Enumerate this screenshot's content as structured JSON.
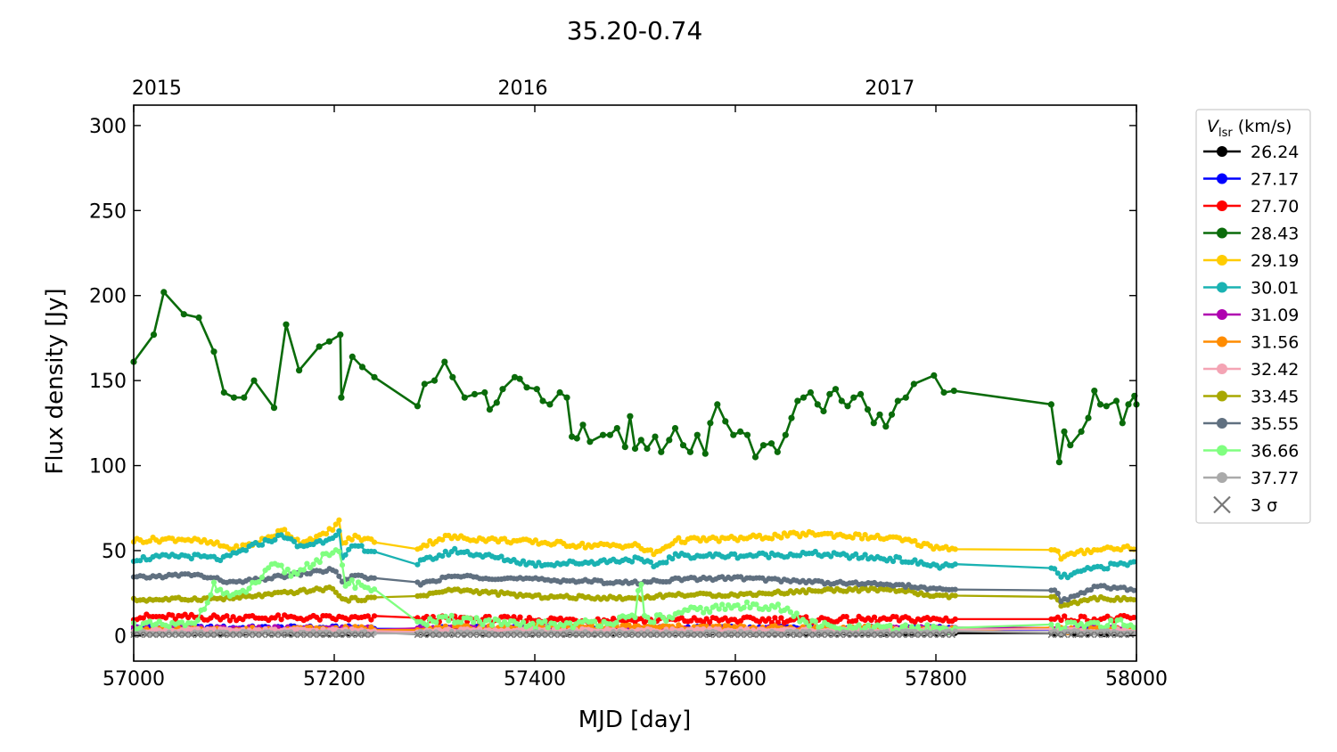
{
  "chart_data": {
    "type": "line",
    "title": "35.20-0.74",
    "xlabel": "MJD [day]",
    "ylabel": "Flux density [Jy]",
    "xlim": [
      57000,
      58000
    ],
    "ylim": [
      -15,
      312
    ],
    "xticks": [
      57000,
      57200,
      57400,
      57600,
      57800,
      58000
    ],
    "yticks": [
      0,
      50,
      100,
      150,
      200,
      250,
      300
    ],
    "top_axis": {
      "ticks": [
        {
          "label": "2015",
          "mjd": 57023
        },
        {
          "label": "2016",
          "mjd": 57388
        },
        {
          "label": "2017",
          "mjd": 57754
        }
      ]
    },
    "legend": {
      "title_main": "V",
      "title_sub": "lsr",
      "title_unit": " (km/s)",
      "position": "outside-right",
      "sigma_label": "3 σ"
    },
    "series": [
      {
        "name": "26.24",
        "color": "#000000",
        "shape": "flat",
        "level": 1.5,
        "noise": 0.6,
        "end": 1.2
      },
      {
        "name": "27.17",
        "color": "#0000ff",
        "shape": "flat",
        "level": 4.5,
        "noise": 1.2,
        "end": 4.0
      },
      {
        "name": "27.70",
        "color": "#ff0000",
        "shape": "flat",
        "level": 9,
        "noise": 1.8,
        "start": 11,
        "end": 10
      },
      {
        "name": "28.43",
        "color": "#0a6b0a",
        "shape": "main"
      },
      {
        "name": "29.19",
        "color": "#ffcc00",
        "shape": "trend",
        "base": 55,
        "noise": 1.5,
        "knots": [
          [
            57000,
            56
          ],
          [
            57050,
            57
          ],
          [
            57080,
            54
          ],
          [
            57100,
            51
          ],
          [
            57120,
            54
          ],
          [
            57150,
            62
          ],
          [
            57165,
            55
          ],
          [
            57190,
            59
          ],
          [
            57205,
            67
          ],
          [
            57207,
            54
          ],
          [
            57220,
            58
          ],
          [
            57280,
            51
          ],
          [
            57310,
            58
          ],
          [
            57400,
            55
          ],
          [
            57450,
            53
          ],
          [
            57500,
            53
          ],
          [
            57520,
            48
          ],
          [
            57540,
            56
          ],
          [
            57600,
            57
          ],
          [
            57680,
            60
          ],
          [
            57760,
            57
          ],
          [
            57800,
            52
          ],
          [
            57920,
            50
          ],
          [
            57925,
            46
          ],
          [
            57960,
            51
          ],
          [
            58000,
            52
          ]
        ]
      },
      {
        "name": "30.01",
        "color": "#1ab2b2",
        "shape": "trend",
        "base": 45,
        "noise": 1.5,
        "knots": [
          [
            57000,
            45
          ],
          [
            57050,
            47
          ],
          [
            57090,
            45
          ],
          [
            57120,
            53
          ],
          [
            57150,
            59
          ],
          [
            57165,
            52
          ],
          [
            57190,
            56
          ],
          [
            57205,
            61
          ],
          [
            57207,
            44
          ],
          [
            57220,
            53
          ],
          [
            57280,
            42
          ],
          [
            57320,
            50
          ],
          [
            57400,
            42
          ],
          [
            57450,
            43
          ],
          [
            57500,
            45
          ],
          [
            57520,
            41
          ],
          [
            57540,
            47
          ],
          [
            57600,
            47
          ],
          [
            57680,
            48
          ],
          [
            57760,
            45
          ],
          [
            57800,
            41
          ],
          [
            57920,
            39
          ],
          [
            57925,
            34
          ],
          [
            57960,
            40
          ],
          [
            58000,
            43
          ]
        ]
      },
      {
        "name": "31.09",
        "color": "#b000b0",
        "shape": "flat",
        "level": 4,
        "noise": 1.2,
        "end": 4
      },
      {
        "name": "31.56",
        "color": "#ff8c00",
        "shape": "flat",
        "level": 5,
        "noise": 1.5,
        "start": 3,
        "end": 3
      },
      {
        "name": "32.42",
        "color": "#f4a4b4",
        "shape": "flat",
        "level": 3,
        "noise": 1.0,
        "end": 3
      },
      {
        "name": "33.45",
        "color": "#a8a800",
        "shape": "trend",
        "base": 23,
        "noise": 1.0,
        "knots": [
          [
            57000,
            21
          ],
          [
            57100,
            22
          ],
          [
            57200,
            28
          ],
          [
            57207,
            21
          ],
          [
            57280,
            23
          ],
          [
            57320,
            27
          ],
          [
            57400,
            23
          ],
          [
            57500,
            22
          ],
          [
            57540,
            24
          ],
          [
            57600,
            24
          ],
          [
            57700,
            27
          ],
          [
            57760,
            27
          ],
          [
            57800,
            23
          ],
          [
            57920,
            23
          ],
          [
            57925,
            17
          ],
          [
            57960,
            22
          ],
          [
            58000,
            21
          ]
        ]
      },
      {
        "name": "35.55",
        "color": "#607080",
        "shape": "trend",
        "base": 33,
        "noise": 1.0,
        "knots": [
          [
            57000,
            34
          ],
          [
            57060,
            36
          ],
          [
            57100,
            31
          ],
          [
            57200,
            39
          ],
          [
            57207,
            32
          ],
          [
            57220,
            35
          ],
          [
            57280,
            30
          ],
          [
            57320,
            35
          ],
          [
            57400,
            33
          ],
          [
            57500,
            31
          ],
          [
            57540,
            33
          ],
          [
            57600,
            34
          ],
          [
            57700,
            31
          ],
          [
            57760,
            30
          ],
          [
            57800,
            27
          ],
          [
            57920,
            27
          ],
          [
            57925,
            20
          ],
          [
            57960,
            29
          ],
          [
            58000,
            27
          ]
        ]
      },
      {
        "name": "36.66",
        "color": "#80ff80",
        "shape": "spiky",
        "base": 6,
        "noise": 2.5,
        "knots": [
          [
            57000,
            6
          ],
          [
            57060,
            6
          ],
          [
            57080,
            29
          ],
          [
            57100,
            22
          ],
          [
            57120,
            30
          ],
          [
            57140,
            41
          ],
          [
            57160,
            36
          ],
          [
            57180,
            44
          ],
          [
            57207,
            49
          ],
          [
            57210,
            31
          ],
          [
            57230,
            30
          ],
          [
            57260,
            15
          ],
          [
            57290,
            8
          ],
          [
            57330,
            10
          ],
          [
            57380,
            6
          ],
          [
            57450,
            7
          ],
          [
            57500,
            10
          ],
          [
            57505,
            35
          ],
          [
            57510,
            10
          ],
          [
            57530,
            10
          ],
          [
            57560,
            15
          ],
          [
            57600,
            17
          ],
          [
            57640,
            18
          ],
          [
            57670,
            8
          ],
          [
            57700,
            4
          ],
          [
            57800,
            4
          ],
          [
            57920,
            5
          ],
          [
            57960,
            7
          ],
          [
            58000,
            7
          ]
        ]
      },
      {
        "name": "37.77",
        "color": "#aaaaaa",
        "shape": "flat",
        "level": 1.5,
        "noise": 0.8,
        "end": 2
      }
    ],
    "sigma_level": 0.5,
    "main_series_points": [
      [
        57000,
        161
      ],
      [
        57020,
        177
      ],
      [
        57030,
        202
      ],
      [
        57050,
        189
      ],
      [
        57065,
        187
      ],
      [
        57080,
        167
      ],
      [
        57090,
        143
      ],
      [
        57100,
        140
      ],
      [
        57110,
        140
      ],
      [
        57120,
        150
      ],
      [
        57140,
        134
      ],
      [
        57152,
        183
      ],
      [
        57165,
        156
      ],
      [
        57185,
        170
      ],
      [
        57195,
        173
      ],
      [
        57206,
        177
      ],
      [
        57207,
        140
      ],
      [
        57218,
        164
      ],
      [
        57228,
        158
      ],
      [
        57240,
        152
      ],
      [
        57283,
        135
      ],
      [
        57290,
        148
      ],
      [
        57300,
        150
      ],
      [
        57310,
        161
      ],
      [
        57318,
        152
      ],
      [
        57330,
        140
      ],
      [
        57340,
        142
      ],
      [
        57350,
        143
      ],
      [
        57355,
        133
      ],
      [
        57362,
        137
      ],
      [
        57368,
        145
      ],
      [
        57380,
        152
      ],
      [
        57385,
        151
      ],
      [
        57392,
        146
      ],
      [
        57402,
        145
      ],
      [
        57408,
        138
      ],
      [
        57415,
        136
      ],
      [
        57425,
        143
      ],
      [
        57432,
        140
      ],
      [
        57437,
        117
      ],
      [
        57442,
        116
      ],
      [
        57448,
        124
      ],
      [
        57455,
        114
      ],
      [
        57468,
        118
      ],
      [
        57475,
        118
      ],
      [
        57482,
        122
      ],
      [
        57490,
        111
      ],
      [
        57495,
        129
      ],
      [
        57500,
        110
      ],
      [
        57506,
        115
      ],
      [
        57512,
        110
      ],
      [
        57520,
        117
      ],
      [
        57526,
        108
      ],
      [
        57534,
        115
      ],
      [
        57540,
        122
      ],
      [
        57548,
        112
      ],
      [
        57555,
        108
      ],
      [
        57562,
        118
      ],
      [
        57570,
        107
      ],
      [
        57575,
        125
      ],
      [
        57582,
        136
      ],
      [
        57590,
        126
      ],
      [
        57598,
        118
      ],
      [
        57605,
        120
      ],
      [
        57612,
        118
      ],
      [
        57620,
        105
      ],
      [
        57628,
        112
      ],
      [
        57636,
        113
      ],
      [
        57642,
        108
      ],
      [
        57650,
        118
      ],
      [
        57656,
        128
      ],
      [
        57662,
        138
      ],
      [
        57668,
        140
      ],
      [
        57675,
        143
      ],
      [
        57682,
        136
      ],
      [
        57688,
        132
      ],
      [
        57694,
        142
      ],
      [
        57700,
        145
      ],
      [
        57706,
        138
      ],
      [
        57712,
        135
      ],
      [
        57718,
        140
      ],
      [
        57725,
        142
      ],
      [
        57732,
        133
      ],
      [
        57738,
        125
      ],
      [
        57744,
        130
      ],
      [
        57750,
        123
      ],
      [
        57756,
        130
      ],
      [
        57762,
        138
      ],
      [
        57770,
        140
      ],
      [
        57778,
        148
      ],
      [
        57798,
        153
      ],
      [
        57808,
        143
      ],
      [
        57818,
        144
      ],
      [
        57915,
        136
      ],
      [
        57923,
        102
      ],
      [
        57928,
        120
      ],
      [
        57934,
        112
      ],
      [
        57945,
        120
      ],
      [
        57952,
        128
      ],
      [
        57958,
        144
      ],
      [
        57964,
        136
      ],
      [
        57970,
        135
      ],
      [
        57980,
        138
      ],
      [
        57986,
        125
      ],
      [
        57992,
        136
      ],
      [
        57998,
        141
      ],
      [
        58000,
        136
      ]
    ]
  }
}
